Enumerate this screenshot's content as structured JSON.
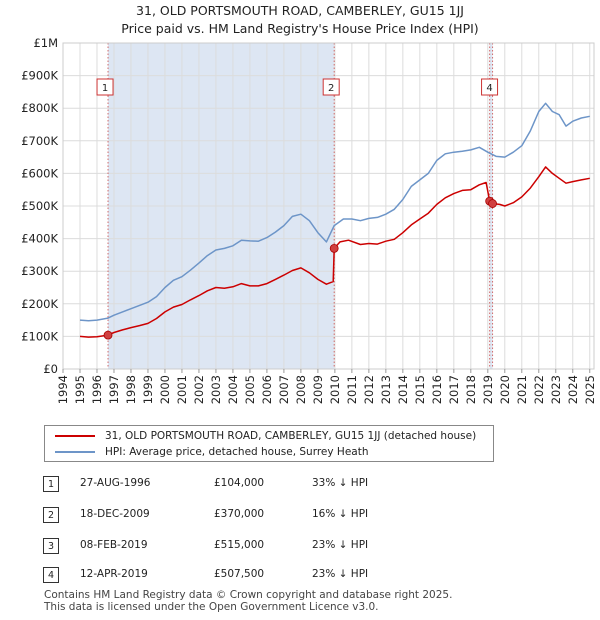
{
  "title_line1": "31, OLD PORTSMOUTH ROAD, CAMBERLEY, GU15 1JJ",
  "title_line2": "Price paid vs. HM Land Registry's House Price Index (HPI)",
  "colors": {
    "property": "#cc0000",
    "hpi": "#6d95c8",
    "shade": "#dde6f3",
    "marker": "#d04040"
  },
  "chart_data": {
    "type": "line",
    "xlim": [
      1994,
      2025.25
    ],
    "ylim": [
      0,
      1000000
    ],
    "ytick_values": [
      0,
      100000,
      200000,
      300000,
      400000,
      500000,
      600000,
      700000,
      800000,
      900000,
      1000000
    ],
    "ytick_labels": [
      "£0",
      "£100K",
      "£200K",
      "£300K",
      "£400K",
      "£500K",
      "£600K",
      "£700K",
      "£800K",
      "£900K",
      "£1M"
    ],
    "xticks": [
      1994,
      1995,
      1996,
      1997,
      1998,
      1999,
      2000,
      2001,
      2002,
      2003,
      2004,
      2005,
      2006,
      2007,
      2008,
      2009,
      2010,
      2011,
      2012,
      2013,
      2014,
      2015,
      2016,
      2017,
      2018,
      2019,
      2020,
      2021,
      2022,
      2023,
      2024,
      2025
    ],
    "grid": true,
    "shaded_periods": [
      [
        1996.65,
        2009.96
      ],
      [
        2019.11,
        2019.28
      ]
    ],
    "series": [
      {
        "name": "31, OLD PORTSMOUTH ROAD, CAMBERLEY, GU15 1JJ (detached house)",
        "color": "#cc0000",
        "points": [
          [
            1995.0,
            100000
          ],
          [
            1995.5,
            98000
          ],
          [
            1996.0,
            99000
          ],
          [
            1996.65,
            104000
          ],
          [
            1997.0,
            112000
          ],
          [
            1997.5,
            120000
          ],
          [
            1998.0,
            127000
          ],
          [
            1998.5,
            133000
          ],
          [
            1999.0,
            140000
          ],
          [
            1999.5,
            155000
          ],
          [
            2000.0,
            175000
          ],
          [
            2000.5,
            190000
          ],
          [
            2001.0,
            198000
          ],
          [
            2001.5,
            212000
          ],
          [
            2002.0,
            225000
          ],
          [
            2002.5,
            240000
          ],
          [
            2003.0,
            250000
          ],
          [
            2003.5,
            248000
          ],
          [
            2004.0,
            252000
          ],
          [
            2004.5,
            262000
          ],
          [
            2005.0,
            255000
          ],
          [
            2005.5,
            255000
          ],
          [
            2006.0,
            262000
          ],
          [
            2006.5,
            275000
          ],
          [
            2007.0,
            288000
          ],
          [
            2007.5,
            302000
          ],
          [
            2008.0,
            310000
          ],
          [
            2008.5,
            295000
          ],
          [
            2009.0,
            275000
          ],
          [
            2009.5,
            260000
          ],
          [
            2009.9,
            268000
          ],
          [
            2009.96,
            370000
          ],
          [
            2010.3,
            390000
          ],
          [
            2010.8,
            395000
          ],
          [
            2011.5,
            382000
          ],
          [
            2012.0,
            385000
          ],
          [
            2012.5,
            383000
          ],
          [
            2013.0,
            392000
          ],
          [
            2013.5,
            398000
          ],
          [
            2014.0,
            418000
          ],
          [
            2014.5,
            442000
          ],
          [
            2015.0,
            460000
          ],
          [
            2015.5,
            478000
          ],
          [
            2016.0,
            505000
          ],
          [
            2016.5,
            525000
          ],
          [
            2017.0,
            538000
          ],
          [
            2017.5,
            548000
          ],
          [
            2018.0,
            550000
          ],
          [
            2018.5,
            565000
          ],
          [
            2018.9,
            572000
          ],
          [
            2019.11,
            515000
          ],
          [
            2019.28,
            507500
          ],
          [
            2019.7,
            505000
          ],
          [
            2020.0,
            500000
          ],
          [
            2020.5,
            510000
          ],
          [
            2021.0,
            528000
          ],
          [
            2021.5,
            555000
          ],
          [
            2022.0,
            590000
          ],
          [
            2022.4,
            620000
          ],
          [
            2022.8,
            600000
          ],
          [
            2023.2,
            585000
          ],
          [
            2023.6,
            570000
          ],
          [
            2024.0,
            575000
          ],
          [
            2024.5,
            580000
          ],
          [
            2025.0,
            585000
          ]
        ]
      },
      {
        "name": "HPI: Average price, detached house, Surrey Heath",
        "color": "#6d95c8",
        "points": [
          [
            1995.0,
            150000
          ],
          [
            1995.5,
            148000
          ],
          [
            1996.0,
            150000
          ],
          [
            1996.65,
            156000
          ],
          [
            1997.0,
            165000
          ],
          [
            1997.5,
            175000
          ],
          [
            1998.0,
            185000
          ],
          [
            1998.5,
            195000
          ],
          [
            1999.0,
            205000
          ],
          [
            1999.5,
            222000
          ],
          [
            2000.0,
            250000
          ],
          [
            2000.5,
            272000
          ],
          [
            2001.0,
            283000
          ],
          [
            2001.5,
            303000
          ],
          [
            2002.0,
            325000
          ],
          [
            2002.5,
            348000
          ],
          [
            2003.0,
            365000
          ],
          [
            2003.5,
            370000
          ],
          [
            2004.0,
            378000
          ],
          [
            2004.5,
            395000
          ],
          [
            2005.0,
            393000
          ],
          [
            2005.5,
            392000
          ],
          [
            2006.0,
            403000
          ],
          [
            2006.5,
            420000
          ],
          [
            2007.0,
            440000
          ],
          [
            2007.5,
            468000
          ],
          [
            2008.0,
            475000
          ],
          [
            2008.5,
            455000
          ],
          [
            2009.0,
            418000
          ],
          [
            2009.5,
            390000
          ],
          [
            2009.96,
            440000
          ],
          [
            2010.5,
            460000
          ],
          [
            2011.0,
            460000
          ],
          [
            2011.5,
            455000
          ],
          [
            2012.0,
            462000
          ],
          [
            2012.5,
            465000
          ],
          [
            2013.0,
            475000
          ],
          [
            2013.5,
            490000
          ],
          [
            2014.0,
            520000
          ],
          [
            2014.5,
            560000
          ],
          [
            2015.0,
            580000
          ],
          [
            2015.5,
            600000
          ],
          [
            2016.0,
            640000
          ],
          [
            2016.5,
            660000
          ],
          [
            2017.0,
            665000
          ],
          [
            2017.5,
            668000
          ],
          [
            2018.0,
            672000
          ],
          [
            2018.5,
            680000
          ],
          [
            2019.0,
            665000
          ],
          [
            2019.5,
            652000
          ],
          [
            2020.0,
            650000
          ],
          [
            2020.5,
            665000
          ],
          [
            2021.0,
            685000
          ],
          [
            2021.5,
            730000
          ],
          [
            2022.0,
            790000
          ],
          [
            2022.4,
            815000
          ],
          [
            2022.8,
            790000
          ],
          [
            2023.2,
            780000
          ],
          [
            2023.6,
            745000
          ],
          [
            2024.0,
            760000
          ],
          [
            2024.5,
            770000
          ],
          [
            2025.0,
            775000
          ]
        ]
      }
    ],
    "annotations": [
      {
        "label": "1",
        "x": 1996.65,
        "y": 104000
      },
      {
        "label": "2",
        "x": 2009.96,
        "y": 370000
      },
      {
        "label": "3",
        "x": 2019.11,
        "y": 515000
      },
      {
        "label": "4",
        "x": 2019.28,
        "y": 507500
      }
    ],
    "box_labels": [
      {
        "label": "1",
        "x": 1996.65
      },
      {
        "label": "2",
        "x": 2009.96
      },
      {
        "label": "4",
        "x": 2019.28
      }
    ]
  },
  "legend": {
    "property_label": "31, OLD PORTSMOUTH ROAD, CAMBERLEY, GU15 1JJ (detached house)",
    "hpi_label": "HPI: Average price, detached house, Surrey Heath"
  },
  "transactions": [
    {
      "num": "1",
      "date": "27-AUG-1996",
      "price": "£104,000",
      "hpi": "33% ↓ HPI"
    },
    {
      "num": "2",
      "date": "18-DEC-2009",
      "price": "£370,000",
      "hpi": "16% ↓ HPI"
    },
    {
      "num": "3",
      "date": "08-FEB-2019",
      "price": "£515,000",
      "hpi": "23% ↓ HPI"
    },
    {
      "num": "4",
      "date": "12-APR-2019",
      "price": "£507,500",
      "hpi": "23% ↓ HPI"
    }
  ],
  "footer_line1": "Contains HM Land Registry data © Crown copyright and database right 2025.",
  "footer_line2": "This data is licensed under the Open Government Licence v3.0."
}
